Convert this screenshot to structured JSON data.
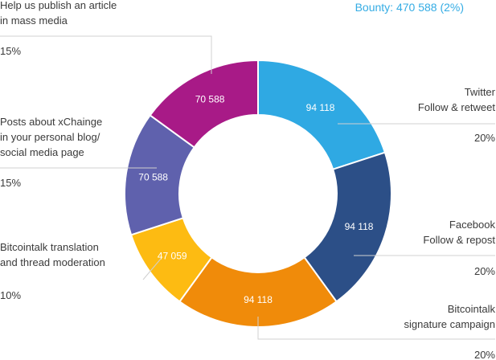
{
  "chart_data": {
    "type": "pie",
    "title": "Bounty: 470 588 (2%)",
    "donut": true,
    "slices": [
      {
        "label_lines": [
          "Twitter",
          "Follow & retweet"
        ],
        "value": 94118,
        "value_label": "94 118",
        "percent_label": "20%",
        "color": "#2fa9e3"
      },
      {
        "label_lines": [
          "Facebook",
          "Follow & repost"
        ],
        "value": 94118,
        "value_label": "94 118",
        "percent_label": "20%",
        "color": "#2c4f87"
      },
      {
        "label_lines": [
          "Bitcointalk",
          "signature campaign"
        ],
        "value": 94118,
        "value_label": "94 118",
        "percent_label": "20%",
        "color": "#f08b0a"
      },
      {
        "label_lines": [
          "Bitcointalk translation",
          "and thread moderation"
        ],
        "value": 47059,
        "value_label": "47 059",
        "percent_label": "10%",
        "color": "#fdbb12"
      },
      {
        "label_lines": [
          "Posts about xChainge",
          "in your personal blog/",
          "social media page"
        ],
        "value": 70588,
        "value_label": "70 588",
        "percent_label": "15%",
        "color": "#5f61ad"
      },
      {
        "label_lines": [
          "Help us publish an article",
          "in mass media"
        ],
        "value": 70588,
        "value_label": "70 588",
        "percent_label": "15%",
        "color": "#a81a87"
      }
    ]
  }
}
